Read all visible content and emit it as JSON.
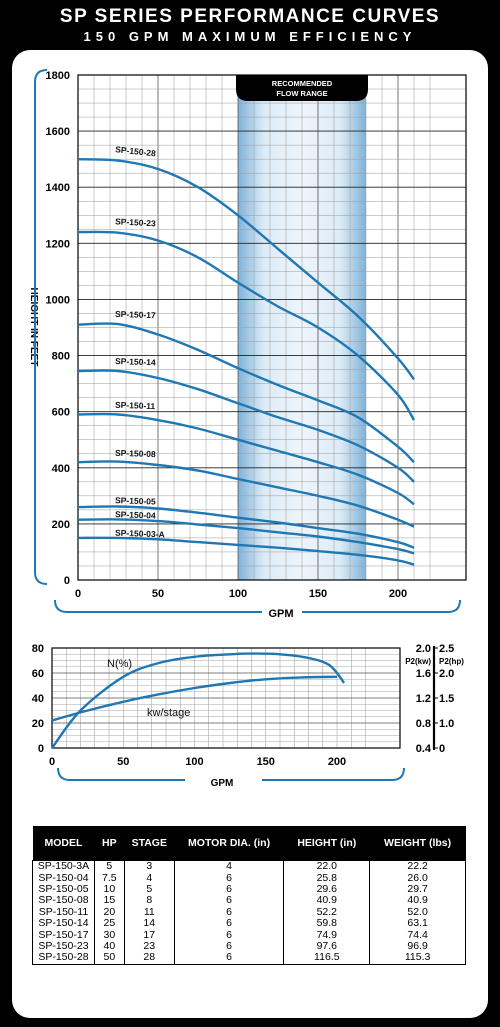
{
  "header": {
    "title": "SP SERIES PERFORMANCE CURVES",
    "subtitle": "150 GPM MAXIMUM EFFICIENCY"
  },
  "chart_data": [
    {
      "type": "line",
      "title": "",
      "xlabel": "GPM",
      "ylabel": "HEIGHT IN FEET",
      "xlim": [
        0,
        220
      ],
      "ylim": [
        0,
        1800
      ],
      "x_ticks": [
        0,
        50,
        100,
        150,
        200
      ],
      "y_ticks": [
        0,
        200,
        400,
        600,
        800,
        1000,
        1200,
        1400,
        1600,
        1800
      ],
      "grid": true,
      "annotation": "RECOMMENDED FLOW RANGE",
      "recommended_range": [
        100,
        180
      ],
      "series": [
        {
          "name": "SP-150-28",
          "x": [
            0,
            25,
            50,
            75,
            100,
            125,
            150,
            175,
            200,
            210
          ],
          "y": [
            1500,
            1495,
            1465,
            1400,
            1300,
            1180,
            1060,
            940,
            790,
            715
          ]
        },
        {
          "name": "SP-150-23",
          "x": [
            0,
            25,
            50,
            75,
            100,
            125,
            150,
            175,
            200,
            210
          ],
          "y": [
            1240,
            1238,
            1210,
            1150,
            1060,
            975,
            900,
            800,
            660,
            570
          ]
        },
        {
          "name": "SP-150-17",
          "x": [
            0,
            25,
            50,
            75,
            100,
            125,
            150,
            175,
            200,
            210
          ],
          "y": [
            910,
            912,
            875,
            820,
            755,
            695,
            640,
            580,
            475,
            420
          ]
        },
        {
          "name": "SP-150-14",
          "x": [
            0,
            25,
            50,
            75,
            100,
            125,
            150,
            175,
            200,
            210
          ],
          "y": [
            745,
            745,
            720,
            680,
            630,
            580,
            535,
            480,
            400,
            350
          ]
        },
        {
          "name": "SP-150-11",
          "x": [
            0,
            25,
            50,
            75,
            100,
            125,
            150,
            175,
            200,
            210
          ],
          "y": [
            590,
            590,
            570,
            540,
            500,
            460,
            420,
            375,
            310,
            270
          ]
        },
        {
          "name": "SP-150-08",
          "x": [
            0,
            25,
            50,
            75,
            100,
            125,
            150,
            175,
            200,
            210
          ],
          "y": [
            420,
            422,
            410,
            390,
            360,
            330,
            300,
            265,
            215,
            190
          ]
        },
        {
          "name": "SP-150-05",
          "x": [
            0,
            25,
            50,
            75,
            100,
            125,
            150,
            175,
            200,
            210
          ],
          "y": [
            260,
            262,
            255,
            240,
            222,
            205,
            185,
            165,
            135,
            115
          ]
        },
        {
          "name": "SP-150-04",
          "x": [
            0,
            25,
            50,
            75,
            100,
            125,
            150,
            175,
            200,
            210
          ],
          "y": [
            215,
            216,
            210,
            198,
            185,
            170,
            155,
            135,
            110,
            95
          ]
        },
        {
          "name": "SP-150-03-A",
          "x": [
            0,
            25,
            50,
            75,
            100,
            125,
            150,
            175,
            200,
            210
          ],
          "y": [
            150,
            150,
            145,
            135,
            125,
            115,
            103,
            90,
            70,
            55
          ]
        }
      ]
    },
    {
      "type": "line",
      "title": "",
      "xlabel": "GPM",
      "xlim": [
        0,
        220
      ],
      "ylim": [
        0,
        80
      ],
      "x_ticks": [
        0,
        50,
        100,
        150,
        200
      ],
      "y_ticks": [
        0,
        20,
        40,
        60,
        80
      ],
      "secondary_axes": [
        {
          "label": "P2(kw)",
          "ticks": [
            "0.4",
            "0.8",
            "1.2",
            "1.6",
            "2.0"
          ],
          "range": [
            0.4,
            2.0
          ]
        },
        {
          "label": "P2(hp)",
          "ticks": [
            "0",
            "1.0",
            "1.5",
            "2.0",
            "2.5"
          ]
        }
      ],
      "grid": true,
      "series": [
        {
          "name": "N(%)",
          "x": [
            0,
            20,
            50,
            75,
            100,
            125,
            140,
            160,
            180,
            195,
            205
          ],
          "y": [
            0,
            30,
            57,
            68,
            73,
            75,
            75.5,
            75,
            72,
            66,
            52
          ]
        },
        {
          "name": "kw/stage",
          "x": [
            0,
            25,
            50,
            75,
            100,
            125,
            150,
            175,
            200
          ],
          "y": [
            0.84,
            1.0,
            1.14,
            1.26,
            1.36,
            1.44,
            1.5,
            1.53,
            1.54
          ]
        }
      ]
    }
  ],
  "table": {
    "headers": [
      "MODEL",
      "HP",
      "STAGE",
      "MOTOR DIA. (in)",
      "HEIGHT (in)",
      "WEIGHT (lbs)"
    ],
    "rows": [
      [
        "SP-150-3A",
        "5",
        "3",
        "4",
        "22.0",
        "22.2"
      ],
      [
        "SP-150-04",
        "7.5",
        "4",
        "6",
        "25.8",
        "26.0"
      ],
      [
        "SP-150-05",
        "10",
        "5",
        "6",
        "29.6",
        "29.7"
      ],
      [
        "SP-150-08",
        "15",
        "8",
        "6",
        "40.9",
        "40.9"
      ],
      [
        "SP-150-11",
        "20",
        "11",
        "6",
        "52.2",
        "52.0"
      ],
      [
        "SP-150-14",
        "25",
        "14",
        "6",
        "59.8",
        "63.1"
      ],
      [
        "SP-150-17",
        "30",
        "17",
        "6",
        "74.9",
        "74.4"
      ],
      [
        "SP-150-23",
        "40",
        "23",
        "6",
        "97.6",
        "96.9"
      ],
      [
        "SP-150-28",
        "50",
        "28",
        "6",
        "116.5",
        "115.3"
      ]
    ]
  },
  "colors": {
    "curve": "#1f77b4",
    "band": "#a9cce6",
    "band_edge": "#7fb2d9",
    "bracket": "#1f77b4"
  }
}
